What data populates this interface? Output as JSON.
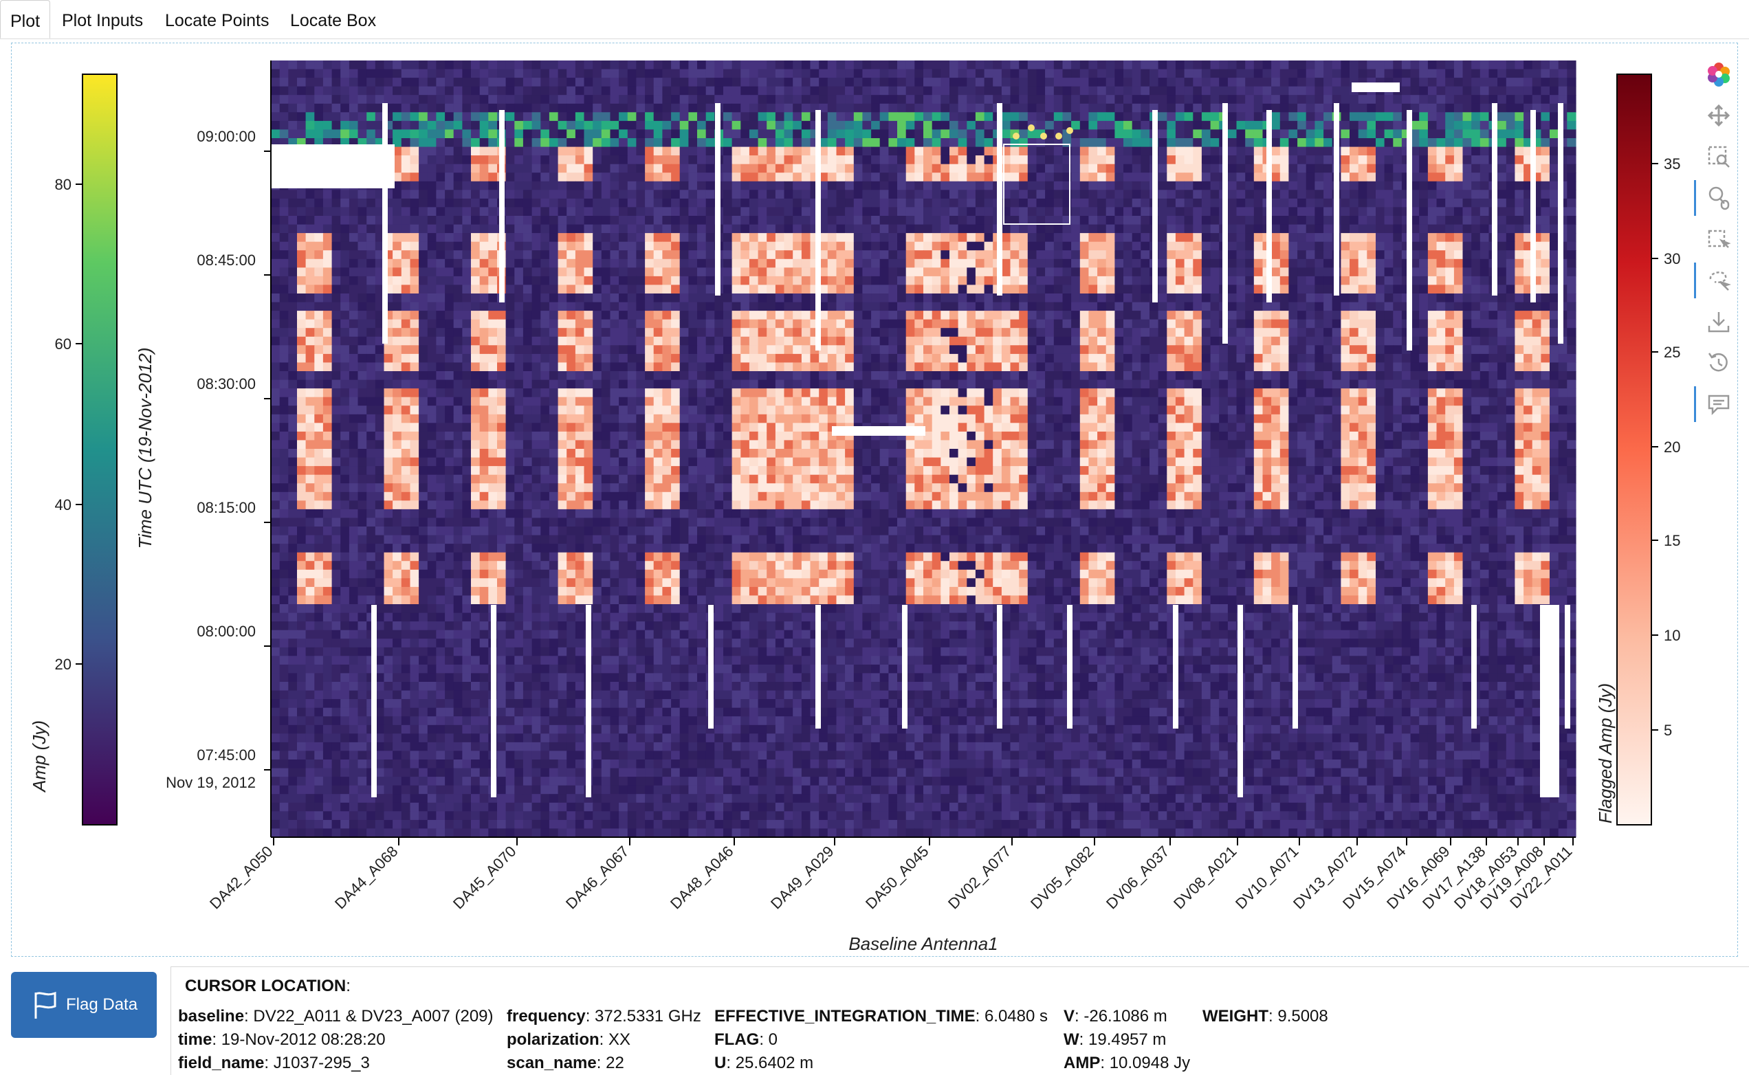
{
  "tabs": [
    {
      "label": "Plot",
      "active": true
    },
    {
      "label": "Plot Inputs",
      "active": false
    },
    {
      "label": "Locate Points",
      "active": false
    },
    {
      "label": "Locate Box",
      "active": false
    }
  ],
  "plot": {
    "x_axis_label": "Baseline Antenna1",
    "y_axis_label": "Time UTC (19-Nov-2012)",
    "y_ticks": [
      "09:00:00",
      "08:45:00",
      "08:30:00",
      "08:15:00",
      "08:00:00",
      "07:45:00"
    ],
    "y_date_label": "Nov 19, 2012",
    "x_ticks": [
      "DA42_A050",
      "DA44_A068",
      "DA45_A070",
      "DA46_A067",
      "DA48_A046",
      "DA49_A029",
      "DA50_A045",
      "DV02_A077",
      "DV05_A082",
      "DV06_A037",
      "DV08_A021",
      "DV10_A071",
      "DV13_A072",
      "DV15_A074",
      "DV16_A069",
      "DV17_A138",
      "DV18_A053",
      "DV19_A008",
      "DV22_A011"
    ],
    "left_colorbar": {
      "label": "Amp (Jy)",
      "ticks": [
        "80",
        "60",
        "40",
        "20"
      ],
      "colormap": "viridis",
      "range": [
        0,
        93
      ]
    },
    "right_colorbar": {
      "label": "Flagged Amp (Jy)",
      "ticks": [
        "35",
        "30",
        "25",
        "20",
        "15",
        "10",
        "5"
      ],
      "colormap": "reds",
      "range": [
        0,
        39
      ]
    }
  },
  "toolbar": {
    "tools": [
      "bokeh-logo-icon",
      "pan-icon",
      "box-zoom-icon",
      "wheel-zoom-icon",
      "box-select-icon",
      "lasso-select-icon",
      "save-icon",
      "reset-icon",
      "hover-icon"
    ]
  },
  "flag_button": {
    "label": "Flag Data",
    "icon": "flag-icon"
  },
  "cursor": {
    "title": "CURSOR LOCATION",
    "fields": [
      {
        "key": "baseline",
        "value": "DV22_A011 & DV23_A007 (209)"
      },
      {
        "key": "time",
        "value": "19-Nov-2012 08:28:20"
      },
      {
        "key": "field_name",
        "value": "J1037-295_3"
      },
      {
        "key": "frequency",
        "value": "372.5331 GHz"
      },
      {
        "key": "polarization",
        "value": "XX"
      },
      {
        "key": "scan_name",
        "value": "22"
      },
      {
        "key": "EFFECTIVE_INTEGRATION_TIME",
        "value": "6.0480 s"
      },
      {
        "key": "FLAG",
        "value": "0"
      },
      {
        "key": "U",
        "value": "25.6402 m"
      },
      {
        "key": "V",
        "value": "-26.1086 m"
      },
      {
        "key": "W",
        "value": "19.4957 m"
      },
      {
        "key": "AMP",
        "value": "10.0948 Jy"
      },
      {
        "key": "WEIGHT",
        "value": "9.5008"
      }
    ]
  }
}
